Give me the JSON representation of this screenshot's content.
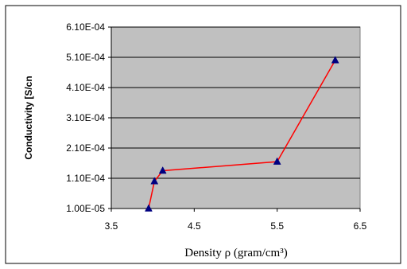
{
  "chart_data": {
    "type": "line",
    "xlabel": "Density  ρ  (gram/cm³)",
    "ylabel": "Conductivity [S/cn",
    "xlim": [
      3.5,
      6.5
    ],
    "ylim": [
      1e-05,
      0.00061
    ],
    "x_ticks": [
      "3.5",
      "4.5",
      "5.5",
      "6.5"
    ],
    "y_ticks": [
      "1.00E-05",
      "1.10E-04",
      "2.10E-04",
      "3.10E-04",
      "4.10E-04",
      "5.10E-04",
      "6.10E-04"
    ],
    "grid": "horizontal",
    "plot_background": "#c0c0c0",
    "line_color": "#ff0000",
    "marker_color": "#000080",
    "marker": "triangle",
    "series": [
      {
        "x": [
          3.95,
          4.02,
          4.12,
          5.5,
          6.2
        ],
        "y": [
          1e-05,
          0.0001,
          0.000135,
          0.000165,
          0.0005
        ]
      }
    ]
  }
}
